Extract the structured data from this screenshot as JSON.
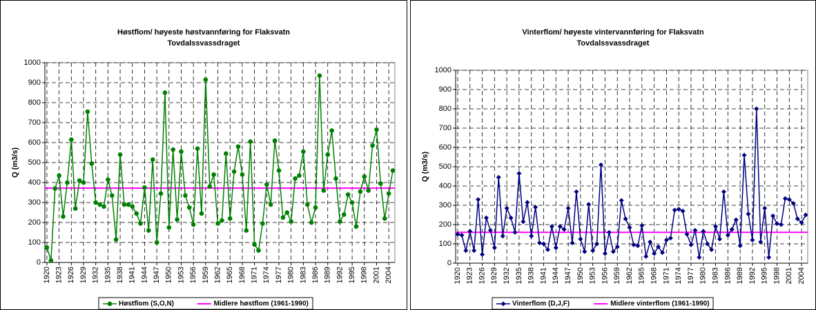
{
  "chart_data": [
    {
      "type": "line",
      "title": "Høstflom/ høyeste høstvannføring for Flaksvatn",
      "subtitle": "Tovdalssvassdraget",
      "y_label": "Q (m3/s)",
      "marker": "circle",
      "x": [
        1920,
        1921,
        1922,
        1923,
        1924,
        1925,
        1926,
        1927,
        1928,
        1929,
        1930,
        1931,
        1932,
        1933,
        1934,
        1935,
        1936,
        1937,
        1938,
        1939,
        1940,
        1941,
        1942,
        1943,
        1944,
        1945,
        1946,
        1947,
        1948,
        1949,
        1950,
        1951,
        1952,
        1953,
        1954,
        1955,
        1956,
        1957,
        1958,
        1959,
        1960,
        1961,
        1962,
        1963,
        1964,
        1965,
        1966,
        1967,
        1968,
        1969,
        1970,
        1971,
        1972,
        1973,
        1974,
        1975,
        1976,
        1977,
        1978,
        1979,
        1980,
        1981,
        1982,
        1983,
        1984,
        1985,
        1986,
        1987,
        1988,
        1989,
        1990,
        1991,
        1992,
        1993,
        1994,
        1995,
        1996,
        1997,
        1998,
        1999,
        2000,
        2001,
        2002,
        2003,
        2004,
        2005
      ],
      "series": [
        {
          "name": "Høstflom (S,O,N)",
          "color": "#008000",
          "values": [
            75,
            10,
            370,
            435,
            230,
            400,
            615,
            270,
            410,
            400,
            755,
            495,
            300,
            290,
            280,
            415,
            335,
            115,
            540,
            290,
            290,
            280,
            245,
            195,
            375,
            160,
            515,
            100,
            345,
            850,
            175,
            565,
            215,
            555,
            335,
            275,
            190,
            570,
            245,
            915,
            380,
            440,
            195,
            210,
            545,
            220,
            455,
            580,
            440,
            160,
            605,
            90,
            60,
            195,
            390,
            290,
            610,
            460,
            225,
            250,
            205,
            420,
            435,
            555,
            290,
            200,
            275,
            935,
            360,
            540,
            660,
            420,
            205,
            240,
            340,
            300,
            180,
            355,
            430,
            360,
            585,
            665,
            395,
            220,
            345,
            460
          ]
        }
      ],
      "reference_line": {
        "name": "Midlere høstflom (1961-1990)",
        "value": 372,
        "color": "#ff00ff"
      },
      "xlim": [
        1919.5,
        2005.5
      ],
      "xticks": [
        1920,
        1923,
        1926,
        1929,
        1932,
        1935,
        1938,
        1941,
        1944,
        1947,
        1950,
        1953,
        1956,
        1959,
        1962,
        1965,
        1968,
        1971,
        1974,
        1977,
        1980,
        1983,
        1986,
        1989,
        1992,
        1995,
        1998,
        2001,
        2004
      ],
      "ylim": [
        0,
        1000
      ],
      "yticks": [
        0,
        100,
        200,
        300,
        400,
        500,
        600,
        700,
        800,
        900,
        1000
      ],
      "grid": true
    },
    {
      "type": "line",
      "title": "Vinterflom/ høyeste vintervannføring for Flaksvatn",
      "subtitle": "Tovdalssvassdraget",
      "y_label": "Q (m3/s)",
      "marker": "diamond",
      "x": [
        1920,
        1921,
        1922,
        1923,
        1924,
        1925,
        1926,
        1927,
        1928,
        1929,
        1930,
        1931,
        1932,
        1933,
        1934,
        1935,
        1936,
        1937,
        1938,
        1939,
        1940,
        1941,
        1942,
        1943,
        1944,
        1945,
        1946,
        1947,
        1948,
        1949,
        1950,
        1951,
        1952,
        1953,
        1954,
        1955,
        1956,
        1957,
        1958,
        1959,
        1960,
        1961,
        1962,
        1963,
        1964,
        1965,
        1966,
        1967,
        1968,
        1969,
        1970,
        1971,
        1972,
        1973,
        1974,
        1975,
        1976,
        1977,
        1978,
        1979,
        1980,
        1981,
        1982,
        1983,
        1984,
        1985,
        1986,
        1987,
        1988,
        1989,
        1990,
        1991,
        1992,
        1993,
        1994,
        1995,
        1996,
        1997,
        1998,
        1999,
        2000,
        2001,
        2002,
        2003,
        2004,
        2005
      ],
      "series": [
        {
          "name": "Vinterflom (D,J,F)",
          "color": "#000080",
          "values": [
            150,
            145,
            65,
            165,
            65,
            330,
            45,
            235,
            170,
            80,
            445,
            140,
            285,
            235,
            160,
            465,
            215,
            315,
            140,
            290,
            105,
            100,
            70,
            190,
            80,
            190,
            175,
            285,
            105,
            370,
            125,
            60,
            305,
            65,
            100,
            510,
            50,
            160,
            60,
            85,
            325,
            230,
            185,
            95,
            90,
            195,
            35,
            110,
            50,
            85,
            55,
            120,
            130,
            275,
            280,
            270,
            150,
            95,
            170,
            30,
            165,
            100,
            70,
            190,
            125,
            370,
            145,
            175,
            225,
            90,
            560,
            255,
            120,
            800,
            110,
            285,
            30,
            245,
            205,
            200,
            335,
            330,
            310,
            230,
            210,
            250
          ]
        }
      ],
      "reference_line": {
        "name": "Midlere vinterflom (1961-1990)",
        "value": 160,
        "color": "#ff00ff"
      },
      "xlim": [
        1919.5,
        2005.5
      ],
      "xticks": [
        1920,
        1923,
        1926,
        1929,
        1932,
        1935,
        1938,
        1941,
        1944,
        1947,
        1950,
        1953,
        1956,
        1959,
        1962,
        1965,
        1968,
        1971,
        1974,
        1977,
        1980,
        1983,
        1986,
        1989,
        1992,
        1995,
        1998,
        2001,
        2004
      ],
      "ylim": [
        0,
        1000
      ],
      "yticks": [
        0,
        100,
        200,
        300,
        400,
        500,
        600,
        700,
        800,
        900,
        1000
      ],
      "grid": true
    }
  ]
}
